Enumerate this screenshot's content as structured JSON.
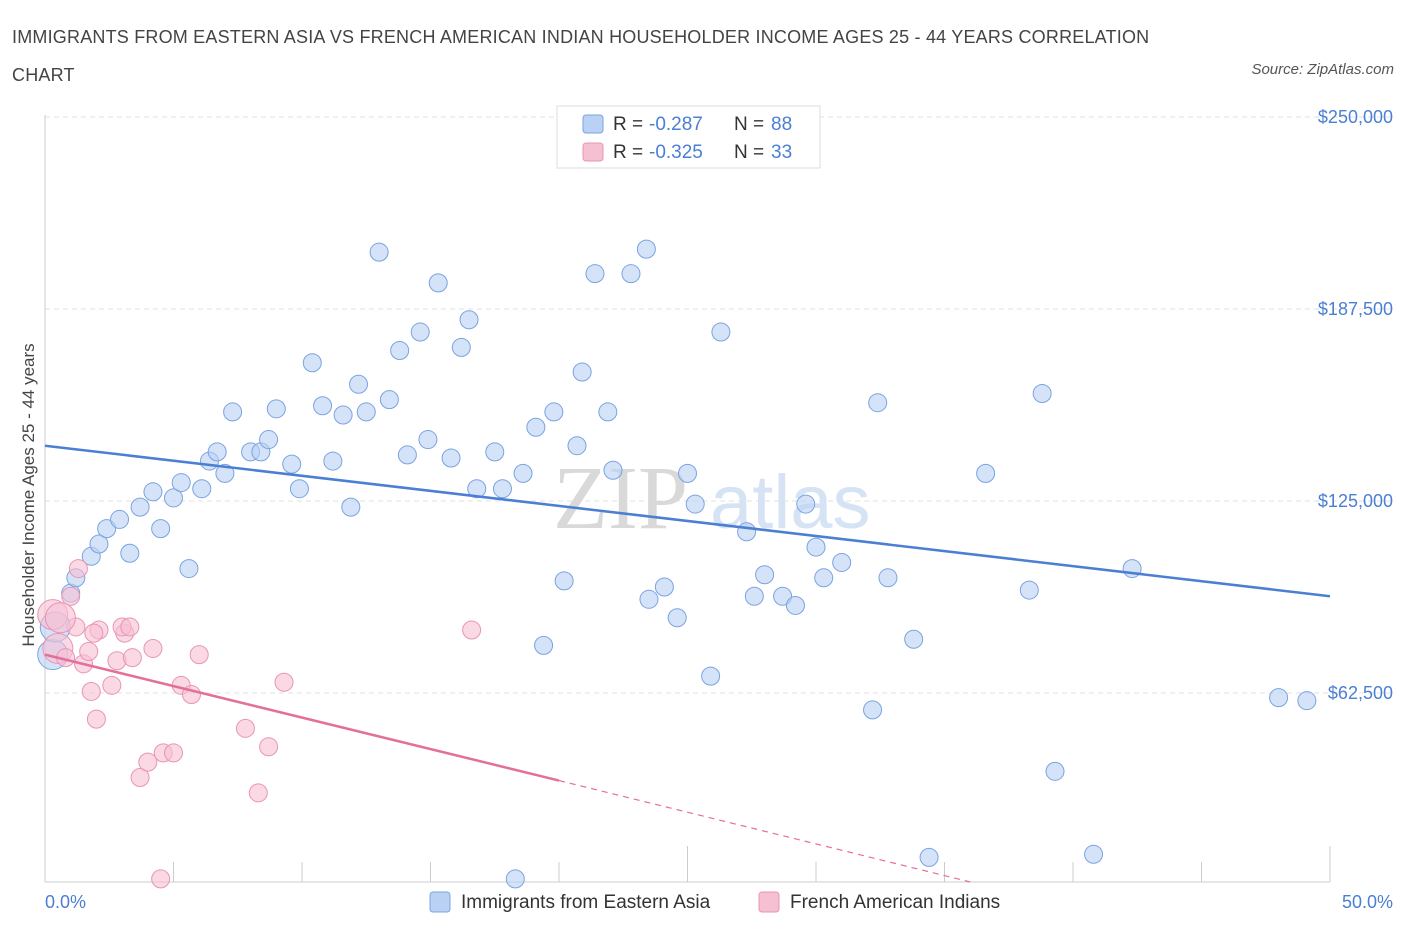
{
  "title": "IMMIGRANTS FROM EASTERN ASIA VS FRENCH AMERICAN INDIAN HOUSEHOLDER INCOME AGES 25 - 44 YEARS CORRELATION CHART",
  "source": "Source: ZipAtlas.com",
  "watermark": {
    "zip": "ZIP",
    "atlas": "atlas"
  },
  "colors": {
    "blue": "#4a7fd4",
    "blue_fill": "#b9d1f5",
    "pink": "#e3709a",
    "pink_fill": "#f6c0d3",
    "axis_text": "#4a7fd4",
    "grid": "#dddddd"
  },
  "legend": {
    "items": [
      {
        "r_label": "R = ",
        "r_value": "-0.287",
        "n_label": "N = ",
        "n_value": "88"
      },
      {
        "r_label": "R = ",
        "r_value": "-0.325",
        "n_label": "N = ",
        "n_value": "33"
      }
    ]
  },
  "chart_data": {
    "type": "scatter",
    "title": "IMMIGRANTS FROM EASTERN ASIA VS FRENCH AMERICAN INDIAN HOUSEHOLDER INCOME AGES 25 - 44 YEARS CORRELATION CHART",
    "xlabel": "",
    "ylabel": "Householder Income Ages 25 - 44 years",
    "xlim": [
      0,
      50
    ],
    "ylim": [
      0,
      250000
    ],
    "x_tick_labels": [
      "0.0%",
      "50.0%"
    ],
    "y_ticks": [
      62500,
      125000,
      187500,
      250000
    ],
    "y_tick_labels": [
      "$62,500",
      "$125,000",
      "$187,500",
      "$250,000"
    ],
    "grid": true,
    "legend_position": "top-center",
    "bottom_legend": [
      "Immigrants from Eastern Asia",
      "French American Indians"
    ],
    "series": [
      {
        "name": "Immigrants from Eastern Asia",
        "color": "#4a7fd4",
        "trend": {
          "x": [
            0,
            50
          ],
          "y": [
            143000,
            94000
          ]
        },
        "points": [
          [
            0.3,
            75000
          ],
          [
            0.4,
            84000
          ],
          [
            1.0,
            95000
          ],
          [
            1.2,
            100000
          ],
          [
            1.8,
            107000
          ],
          [
            2.1,
            111000
          ],
          [
            2.4,
            116000
          ],
          [
            2.9,
            119000
          ],
          [
            3.3,
            108000
          ],
          [
            3.7,
            123000
          ],
          [
            4.2,
            128000
          ],
          [
            4.5,
            116000
          ],
          [
            5.0,
            126000
          ],
          [
            5.3,
            131000
          ],
          [
            5.6,
            103000
          ],
          [
            6.1,
            129000
          ],
          [
            6.4,
            138000
          ],
          [
            6.7,
            141000
          ],
          [
            7.0,
            134000
          ],
          [
            7.3,
            154000
          ],
          [
            8.0,
            141000
          ],
          [
            8.4,
            141000
          ],
          [
            8.7,
            145000
          ],
          [
            9.0,
            155000
          ],
          [
            9.6,
            137000
          ],
          [
            9.9,
            129000
          ],
          [
            10.4,
            170000
          ],
          [
            10.8,
            156000
          ],
          [
            11.2,
            138000
          ],
          [
            11.6,
            153000
          ],
          [
            11.9,
            123000
          ],
          [
            12.2,
            163000
          ],
          [
            12.5,
            154000
          ],
          [
            13.0,
            206000
          ],
          [
            13.4,
            158000
          ],
          [
            13.8,
            174000
          ],
          [
            14.1,
            140000
          ],
          [
            14.6,
            180000
          ],
          [
            14.9,
            145000
          ],
          [
            15.3,
            196000
          ],
          [
            15.8,
            139000
          ],
          [
            16.2,
            175000
          ],
          [
            16.5,
            184000
          ],
          [
            16.8,
            129000
          ],
          [
            17.5,
            141000
          ],
          [
            17.8,
            129000
          ],
          [
            18.3,
            2000
          ],
          [
            18.6,
            134000
          ],
          [
            19.1,
            149000
          ],
          [
            19.4,
            78000
          ],
          [
            19.8,
            154000
          ],
          [
            20.2,
            99000
          ],
          [
            20.7,
            143000
          ],
          [
            20.9,
            167000
          ],
          [
            21.4,
            199000
          ],
          [
            21.9,
            154000
          ],
          [
            22.1,
            135000
          ],
          [
            22.8,
            199000
          ],
          [
            23.4,
            207000
          ],
          [
            23.5,
            93000
          ],
          [
            24.1,
            97000
          ],
          [
            24.6,
            87000
          ],
          [
            25.0,
            134000
          ],
          [
            25.3,
            124000
          ],
          [
            25.9,
            68000
          ],
          [
            26.3,
            180000
          ],
          [
            27.3,
            115000
          ],
          [
            27.6,
            94000
          ],
          [
            28.0,
            101000
          ],
          [
            28.7,
            94000
          ],
          [
            29.2,
            91000
          ],
          [
            29.6,
            124000
          ],
          [
            30.0,
            110000
          ],
          [
            30.3,
            100000
          ],
          [
            31.0,
            105000
          ],
          [
            32.2,
            57000
          ],
          [
            32.4,
            157000
          ],
          [
            32.8,
            100000
          ],
          [
            33.8,
            80000
          ],
          [
            34.4,
            9000
          ],
          [
            36.6,
            134000
          ],
          [
            38.3,
            96000
          ],
          [
            38.8,
            160000
          ],
          [
            39.3,
            37000
          ],
          [
            42.3,
            103000
          ],
          [
            48.0,
            61000
          ],
          [
            49.1,
            60000
          ],
          [
            40.8,
            10000
          ]
        ]
      },
      {
        "name": "French American Indians",
        "color": "#e3709a",
        "trend": {
          "x": [
            0,
            20
          ],
          "y": [
            75000,
            34000
          ]
        },
        "trend_dashed": {
          "x": [
            20,
            36
          ],
          "y": [
            34000,
            1000
          ]
        },
        "points": [
          [
            0.3,
            88000
          ],
          [
            0.5,
            77000
          ],
          [
            0.8,
            74000
          ],
          [
            1.0,
            94000
          ],
          [
            1.2,
            84000
          ],
          [
            1.3,
            103000
          ],
          [
            1.5,
            72000
          ],
          [
            1.7,
            76000
          ],
          [
            1.8,
            63000
          ],
          [
            2.1,
            83000
          ],
          [
            2.0,
            54000
          ],
          [
            2.6,
            65000
          ],
          [
            2.8,
            73000
          ],
          [
            3.1,
            82000
          ],
          [
            3.0,
            84000
          ],
          [
            3.3,
            84000
          ],
          [
            3.4,
            74000
          ],
          [
            3.7,
            35000
          ],
          [
            4.0,
            40000
          ],
          [
            4.2,
            77000
          ],
          [
            4.5,
            2000
          ],
          [
            4.6,
            43000
          ],
          [
            5.0,
            43000
          ],
          [
            5.3,
            65000
          ],
          [
            5.7,
            62000
          ],
          [
            6.0,
            75000
          ],
          [
            7.8,
            51000
          ],
          [
            8.3,
            30000
          ],
          [
            8.7,
            45000
          ],
          [
            9.3,
            66000
          ],
          [
            16.6,
            83000
          ],
          [
            1.9,
            82000
          ],
          [
            0.6,
            87000
          ]
        ]
      }
    ]
  }
}
